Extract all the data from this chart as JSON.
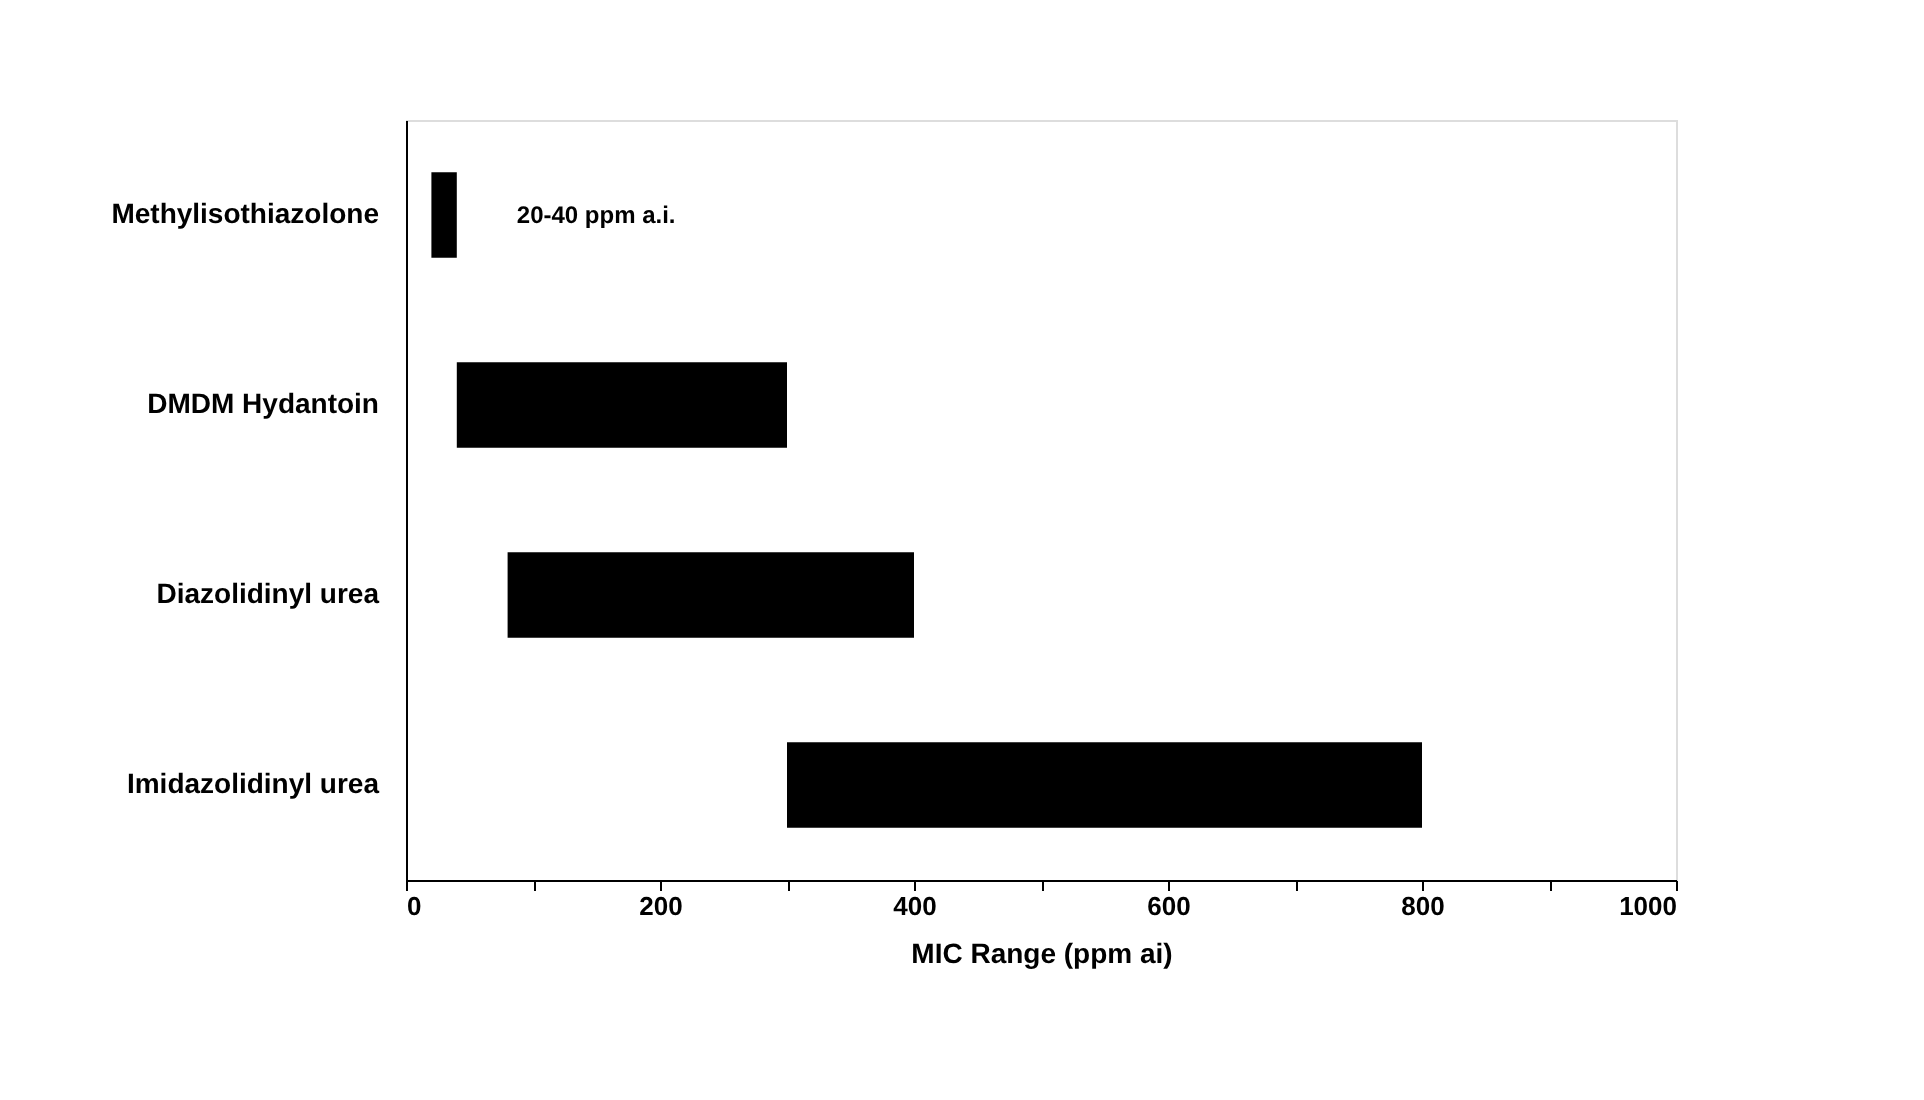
{
  "chart_data": {
    "type": "bar",
    "orientation": "horizontal",
    "xlabel": "MIC Range (ppm ai)",
    "categories": [
      "Methylisothiazolone",
      "DMDM Hydantoin",
      "Diazolidinyl urea",
      "Imidazolidinyl urea"
    ],
    "base": [
      20,
      40,
      80,
      300
    ],
    "values": [
      20,
      260,
      320,
      500
    ],
    "color": "#000000",
    "xlim": [
      0,
      1000
    ],
    "xticks": [
      0,
      {
        "value": 100,
        "label": null
      },
      200,
      {
        "value": 300,
        "label": null
      },
      400,
      {
        "value": 500,
        "label": null
      },
      600,
      {
        "value": 700,
        "label": null
      },
      800,
      {
        "value": 900,
        "label": null
      },
      1000
    ],
    "annotations": [
      {
        "text": "20-40 ppm a.i.",
        "x": 40,
        "y": "Methylisothiazolone"
      }
    ],
    "grid": false
  }
}
